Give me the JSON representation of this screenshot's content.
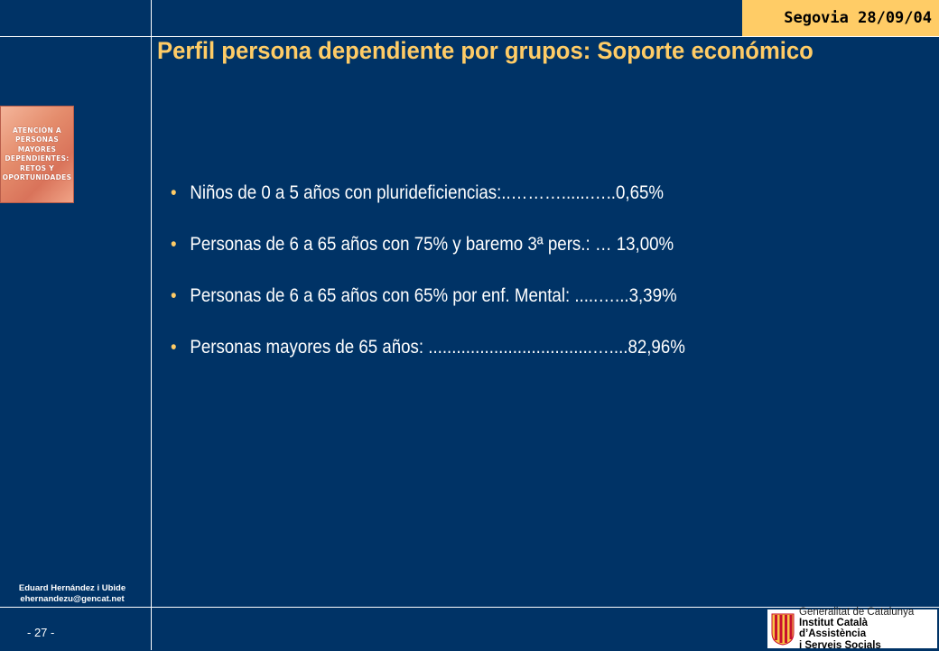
{
  "header": {
    "date_label": "Segovia 28/09/04",
    "title": "Perfil persona dependiente por grupos: Soporte económico"
  },
  "logo": {
    "lines": [
      "ATENCIÓN A",
      "PERSONAS",
      "MAYORES",
      "DEPENDIENTES:",
      "RETOS Y",
      "OPORTUNIDADES"
    ]
  },
  "bullets": [
    {
      "text": "Niños de 0 a 5 años con plurideficiencias:..………......…..0,65%"
    },
    {
      "text": "Personas de 6 a 65 años con 75% y baremo 3ª pers.: … 13,00%"
    },
    {
      "text": "Personas de 6 a 65 años con 65% por enf. Mental: .....…...3,39%"
    },
    {
      "text": "Personas mayores de 65 años: ...................................…....82,96%"
    }
  ],
  "bullet_symbol": "•",
  "footer": {
    "author_name": "Eduard Hernández i Ubide",
    "author_email": "ehernandezu@gencat.net",
    "page_number": "- 27 -",
    "gencat_line1": "Generalitat de Catalunya",
    "gencat_line2": "Institut Català d’Assistència",
    "gencat_line3": "i Serveis Socials"
  },
  "colors": {
    "background": "#003366",
    "accent": "#ffcc66",
    "text": "#ffffff"
  }
}
